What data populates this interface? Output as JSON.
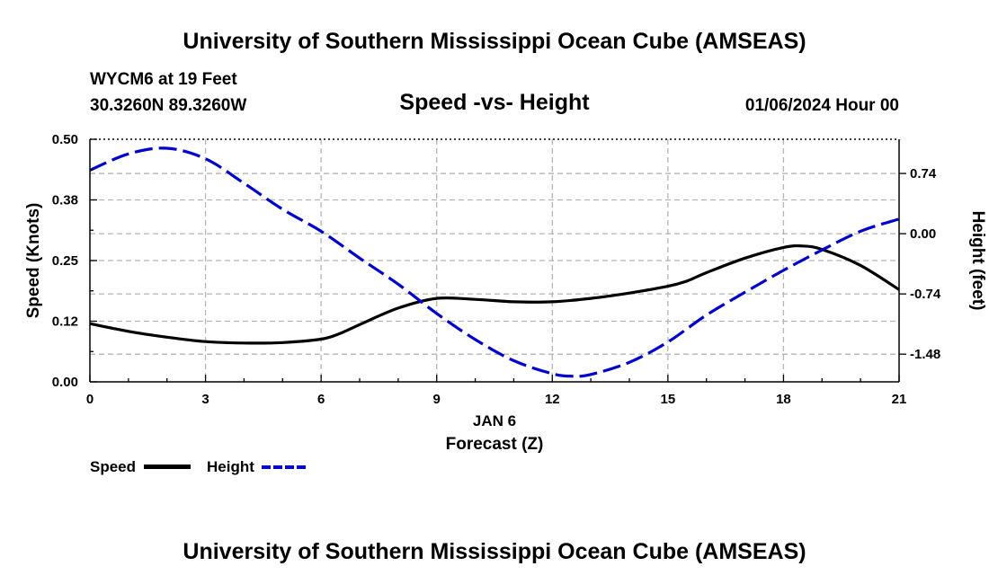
{
  "header": {
    "title": "University of Southern Mississippi Ocean Cube (AMSEAS)",
    "station": "WYCM6 at 19 Feet",
    "coords": "30.3260N  89.3260W",
    "subtitle": "Speed -vs- Height",
    "datetime": "01/06/2024 Hour 00"
  },
  "footer": {
    "title": "University of Southern Mississippi Ocean Cube (AMSEAS)"
  },
  "legend": {
    "speed_label": "Speed",
    "height_label": "Height"
  },
  "colors": {
    "speed": "#000000",
    "height": "#0000cc",
    "grid": "#b4b4b4"
  },
  "chart_data": {
    "type": "line",
    "title": "Speed -vs- Height",
    "xlabel": "Forecast (Z)",
    "xlabel_date": "JAN 6",
    "ylabel": "Speed (Knots)",
    "y2label": "Height (feet)",
    "xlim": [
      0,
      21
    ],
    "ylim": [
      0,
      0.5
    ],
    "y2lim": [
      -1.82,
      1.16
    ],
    "x_ticks": [
      0,
      3,
      6,
      9,
      12,
      15,
      18,
      21
    ],
    "x_tick_labels": [
      "0",
      "3",
      "6",
      "9",
      "12",
      "15",
      "18",
      "21"
    ],
    "y_ticks": [
      0,
      0.125,
      0.25,
      0.375,
      0.5
    ],
    "y_tick_labels": [
      "0.00",
      "0.12",
      "0.25",
      "0.38",
      "0.50"
    ],
    "y2_ticks": [
      0.74,
      0,
      -0.74,
      -1.48
    ],
    "y2_tick_labels": [
      "0.74",
      "0.00",
      "-0.74",
      "-1.48"
    ],
    "grid": true,
    "series": [
      {
        "name": "Speed",
        "axis": "left",
        "style": "solid",
        "x": [
          0,
          1,
          2,
          3,
          4,
          5,
          6,
          6.5,
          7,
          8,
          9,
          10,
          11,
          12,
          13,
          14,
          15,
          15.5,
          16,
          17,
          18,
          18.5,
          19,
          20,
          21
        ],
        "values": [
          0.12,
          0.104,
          0.092,
          0.083,
          0.08,
          0.081,
          0.088,
          0.1,
          0.118,
          0.152,
          0.172,
          0.17,
          0.165,
          0.165,
          0.172,
          0.183,
          0.197,
          0.208,
          0.225,
          0.255,
          0.277,
          0.28,
          0.273,
          0.24,
          0.19
        ]
      },
      {
        "name": "Height",
        "axis": "right",
        "style": "dashed",
        "x": [
          0,
          1,
          2,
          3,
          4,
          5,
          6,
          7,
          8,
          9,
          10,
          11,
          12,
          12.5,
          13,
          14,
          15,
          16,
          17,
          18,
          19,
          20,
          21
        ],
        "values": [
          0.78,
          0.98,
          1.05,
          0.92,
          0.62,
          0.3,
          0.03,
          -0.3,
          -0.62,
          -0.98,
          -1.3,
          -1.56,
          -1.72,
          -1.75,
          -1.73,
          -1.58,
          -1.33,
          -1.0,
          -0.72,
          -0.45,
          -0.2,
          0.03,
          0.18
        ]
      }
    ]
  }
}
